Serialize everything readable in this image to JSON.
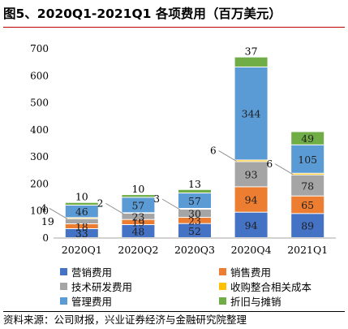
{
  "figure_title": "图5、2020Q1-2021Q1 各项费用（百万美元）",
  "source_note": "资料来源：公司财报，兴业证券经济与金融研究院整理",
  "chart_data": {
    "type": "bar",
    "stacked": true,
    "categories": [
      "2020Q1",
      "2020Q2",
      "2020Q3",
      "2020Q4",
      "2021Q1"
    ],
    "ylim": [
      0,
      700
    ],
    "yticks": [
      0,
      100,
      200,
      300,
      400,
      500,
      600,
      700
    ],
    "grid": false,
    "legend_position": "bottom",
    "series": [
      {
        "name": "营销费用",
        "color": "#4472c4",
        "values": [
          33,
          48,
          52,
          94,
          89
        ]
      },
      {
        "name": "销售费用",
        "color": "#ed7d31",
        "values": [
          18,
          19,
          23,
          94,
          65
        ]
      },
      {
        "name": "技术研发费用",
        "color": "#a5a5a5",
        "values": [
          19,
          23,
          30,
          93,
          78
        ]
      },
      {
        "name": "收购整合相关成本",
        "color": "#ffc000",
        "values": [
          4,
          2,
          3,
          6,
          6
        ]
      },
      {
        "name": "管理费用",
        "color": "#5b9bd5",
        "values": [
          46,
          57,
          57,
          344,
          105
        ]
      },
      {
        "name": "折旧与摊销",
        "color": "#70ad47",
        "values": [
          10,
          10,
          13,
          37,
          49
        ]
      }
    ]
  }
}
